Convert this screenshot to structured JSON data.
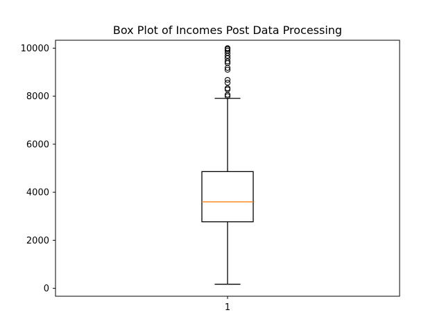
{
  "chart_data": {
    "type": "box",
    "title": "Box Plot of Incomes Post Data Processing",
    "xlabel": "",
    "ylabel": "",
    "categories": [
      "1"
    ],
    "ylim": [
      -330,
      10330
    ],
    "yticks": [
      0,
      2000,
      4000,
      6000,
      8000,
      10000
    ],
    "ytick_labels": [
      "0",
      "2000",
      "4000",
      "6000",
      "8000",
      "10000"
    ],
    "grid": false,
    "boxes": [
      {
        "category": "1",
        "whisker_low": 170,
        "q1": 2770,
        "median": 3600,
        "q3": 4860,
        "whisker_high": 7910,
        "outliers": [
          8000,
          8060,
          8280,
          8330,
          8560,
          8680,
          9100,
          9180,
          9380,
          9450,
          9580,
          9680,
          9800,
          9900,
          9960,
          10000
        ]
      }
    ],
    "colors": {
      "box": "#000000",
      "median": "#ff7f0e",
      "whisker": "#000000",
      "outlier": "#000000"
    }
  }
}
